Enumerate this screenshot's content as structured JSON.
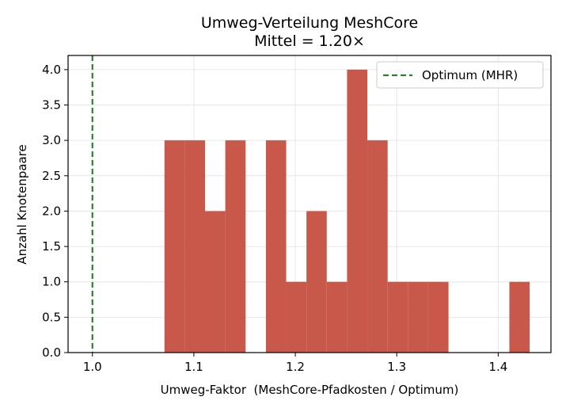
{
  "chart_data": {
    "type": "bar",
    "title": "Umweg-Verteilung MeshCore",
    "subtitle": "Mittel = 1.20×",
    "xlabel": "Umweg-Faktor  (MeshCore-Pfadkosten / Optimum)",
    "ylabel": "Anzahl Knotenpaare",
    "xlim": [
      0.976,
      1.452
    ],
    "ylim": [
      0,
      4.2
    ],
    "x_ticks": [
      "1.0",
      "1.1",
      "1.2",
      "1.3",
      "1.4"
    ],
    "y_ticks": [
      "0.0",
      "0.5",
      "1.0",
      "1.5",
      "2.0",
      "2.5",
      "3.0",
      "3.5",
      "4.0"
    ],
    "grid": true,
    "legend_position": "top-right",
    "bar_color": "#c8594a",
    "bins": [
      {
        "start": 1.071,
        "end": 1.091,
        "count": 3
      },
      {
        "start": 1.091,
        "end": 1.111,
        "count": 3
      },
      {
        "start": 1.111,
        "end": 1.131,
        "count": 2
      },
      {
        "start": 1.131,
        "end": 1.151,
        "count": 3
      },
      {
        "start": 1.171,
        "end": 1.191,
        "count": 3
      },
      {
        "start": 1.191,
        "end": 1.211,
        "count": 1
      },
      {
        "start": 1.211,
        "end": 1.231,
        "count": 2
      },
      {
        "start": 1.231,
        "end": 1.251,
        "count": 1
      },
      {
        "start": 1.251,
        "end": 1.271,
        "count": 4
      },
      {
        "start": 1.271,
        "end": 1.291,
        "count": 3
      },
      {
        "start": 1.291,
        "end": 1.311,
        "count": 1
      },
      {
        "start": 1.311,
        "end": 1.331,
        "count": 1
      },
      {
        "start": 1.331,
        "end": 1.351,
        "count": 1
      },
      {
        "start": 1.411,
        "end": 1.431,
        "count": 1
      }
    ],
    "reference_line": {
      "x": 1.0,
      "label": "Optimum (MHR)",
      "color": "#2e7d32",
      "style": "dashed"
    }
  }
}
